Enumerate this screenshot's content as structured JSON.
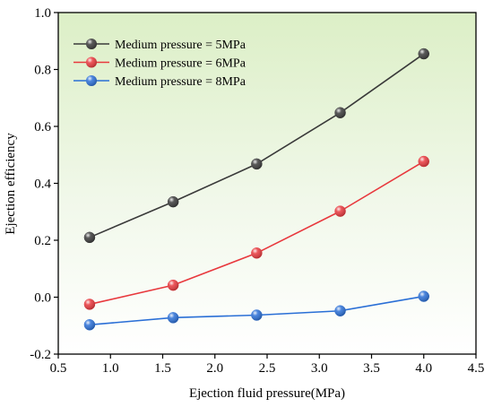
{
  "chart_data": {
    "type": "line",
    "title": "",
    "xlabel": "Ejection fluid pressure(MPa)",
    "ylabel": "Ejection efficiency",
    "xlim": [
      0.5,
      4.5
    ],
    "ylim": [
      -0.2,
      1.0
    ],
    "xticks": [
      "0.5",
      "1.0",
      "1.5",
      "2.0",
      "2.5",
      "3.0",
      "3.5",
      "4.0",
      "4.5"
    ],
    "yticks": [
      "-0.2",
      "0.0",
      "0.2",
      "0.4",
      "0.6",
      "0.8",
      "1.0"
    ],
    "grid": false,
    "legend_position": "top-left",
    "background": "light green gradient",
    "x": [
      0.8,
      1.6,
      2.4,
      3.2,
      4.0
    ],
    "series": [
      {
        "name": "Medium pressure = 5MPa",
        "color": "#3a3a3a",
        "values": [
          0.21,
          0.335,
          0.468,
          0.648,
          0.855
        ]
      },
      {
        "name": "Medium pressure = 6MPa",
        "color": "#e8383d",
        "values": [
          -0.025,
          0.042,
          0.155,
          0.302,
          0.477
        ]
      },
      {
        "name": "Medium pressure = 8MPa",
        "color": "#2a6fd6",
        "values": [
          -0.097,
          -0.072,
          -0.063,
          -0.048,
          0.003
        ]
      }
    ]
  }
}
